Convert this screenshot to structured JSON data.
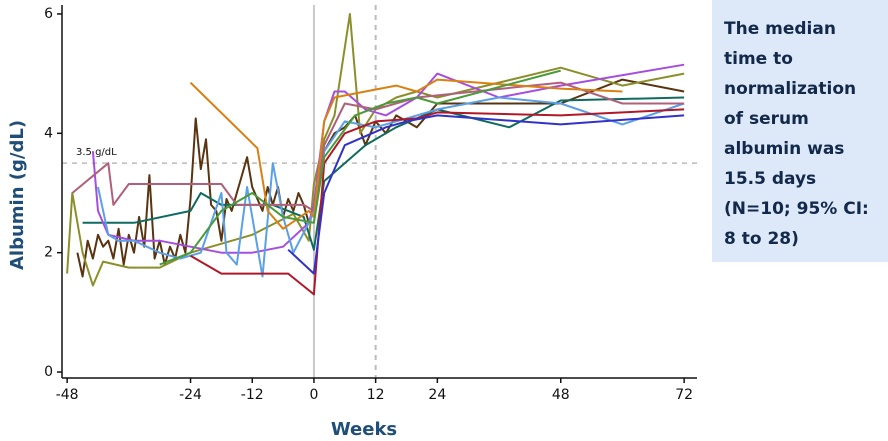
{
  "chart_data": {
    "type": "line",
    "xlabel": "Weeks",
    "ylabel": "Albumin (g/dL)",
    "xlim": [
      -49,
      74.5
    ],
    "ylim": [
      -0.1,
      6.15
    ],
    "xticks": [
      -48,
      -24,
      -12,
      0,
      12,
      24,
      48,
      72
    ],
    "yticks": [
      0,
      2,
      4,
      6
    ],
    "reference_lines": {
      "horizontal": [
        {
          "value": 3.5,
          "label": "3.5 g/dL",
          "style": "dashed"
        }
      ],
      "vertical": [
        {
          "value": 0,
          "style": "solid"
        },
        {
          "value": 12,
          "style": "dashed"
        }
      ]
    },
    "callout": [
      "The median",
      "time to",
      "normalization",
      "of serum",
      "albumin was",
      "15.5 days",
      "(N=10; 95% CI:",
      "8 to 28)"
    ],
    "series": [
      {
        "color": "#5a3410",
        "x": [
          -46,
          -45,
          -44,
          -43,
          -42,
          -41,
          -40,
          -39,
          -38,
          -37,
          -36,
          -35,
          -34,
          -33,
          -32,
          -31,
          -30,
          -29,
          -28,
          -27,
          -26,
          -25,
          -24,
          -23,
          -22,
          -21,
          -20,
          -19,
          -18,
          -17,
          -16,
          -15,
          -14,
          -13,
          -12,
          -11,
          -10,
          -9,
          -8,
          -7,
          -6,
          -5,
          -4,
          -3,
          -2,
          -1,
          0,
          2,
          4,
          6,
          8,
          10,
          12,
          14,
          16,
          20,
          24,
          36,
          48,
          60,
          72
        ],
        "values": [
          2.0,
          1.6,
          2.2,
          1.9,
          2.3,
          2.1,
          2.2,
          1.9,
          2.4,
          1.8,
          2.3,
          2.0,
          2.6,
          2.1,
          3.3,
          1.9,
          2.2,
          1.8,
          2.1,
          1.9,
          2.3,
          2.0,
          2.9,
          4.25,
          3.4,
          3.9,
          2.8,
          2.7,
          2.2,
          2.9,
          2.7,
          3.0,
          3.3,
          3.6,
          3.1,
          2.9,
          2.7,
          3.1,
          2.8,
          3.1,
          2.6,
          2.9,
          2.7,
          3.0,
          2.8,
          2.5,
          2.7,
          3.7,
          4.0,
          4.1,
          4.3,
          3.8,
          4.2,
          4.0,
          4.3,
          4.1,
          4.5,
          4.5,
          4.5,
          4.9,
          4.7
        ]
      },
      {
        "color": "#8a8f2a",
        "x": [
          -48,
          -47,
          -45,
          -43,
          -41,
          -36,
          -30,
          -24,
          -12,
          -4,
          -1,
          0,
          2,
          4,
          7,
          9,
          12,
          16,
          20,
          24,
          48,
          60,
          72
        ],
        "values": [
          1.65,
          3.0,
          2.0,
          1.45,
          1.85,
          1.75,
          1.75,
          2.0,
          2.3,
          2.65,
          2.2,
          3.15,
          3.9,
          4.3,
          6.0,
          4.0,
          4.4,
          4.6,
          4.7,
          4.6,
          5.1,
          4.8,
          5.0
        ]
      },
      {
        "color": "#0f6b5f",
        "x": [
          -45,
          -35,
          -24,
          -22,
          -18,
          -8,
          -2,
          0,
          2,
          10,
          16,
          24,
          38,
          48,
          72
        ],
        "values": [
          2.5,
          2.5,
          2.7,
          3.0,
          2.8,
          2.8,
          2.6,
          2.05,
          3.2,
          3.8,
          4.1,
          4.4,
          4.1,
          4.55,
          4.6
        ]
      },
      {
        "color": "#a64de0",
        "x": [
          -43,
          -42,
          -40,
          -35,
          -30,
          -24,
          -18,
          -12,
          -6,
          -1,
          0,
          2,
          4,
          6,
          10,
          14,
          20,
          24,
          36,
          48,
          72
        ],
        "values": [
          3.7,
          2.7,
          2.3,
          2.2,
          2.2,
          2.1,
          2.0,
          2.0,
          2.1,
          2.5,
          2.8,
          4.2,
          4.7,
          4.7,
          4.4,
          4.3,
          4.6,
          5.0,
          4.6,
          4.8,
          5.15
        ]
      },
      {
        "color": "#5aa0e6",
        "x": [
          -42,
          -40,
          -38,
          -35,
          -30,
          -26,
          -22,
          -18,
          -17,
          -15,
          -13,
          -10,
          -8,
          -6,
          -4,
          -1,
          0,
          2,
          6,
          12,
          16,
          20,
          24,
          36,
          48,
          60,
          72
        ],
        "values": [
          3.1,
          2.3,
          2.2,
          2.2,
          2.0,
          1.9,
          2.0,
          3.0,
          2.0,
          1.8,
          3.1,
          1.6,
          3.5,
          2.6,
          2.0,
          2.5,
          2.7,
          3.7,
          4.2,
          4.1,
          4.2,
          4.3,
          4.4,
          4.6,
          4.5,
          4.15,
          4.5
        ]
      },
      {
        "color": "#b0607a",
        "x": [
          -47,
          -40,
          -39,
          -36,
          -18,
          -15,
          -2,
          0,
          2,
          6,
          12,
          20,
          48,
          60,
          72
        ],
        "values": [
          3.0,
          3.5,
          2.8,
          3.15,
          3.15,
          2.8,
          2.8,
          2.7,
          3.8,
          4.5,
          4.4,
          4.6,
          4.85,
          4.5,
          4.5
        ]
      },
      {
        "color": "#d98012",
        "x": [
          -24,
          -11,
          -9,
          -6,
          -1,
          0,
          2,
          4,
          10,
          16,
          20,
          24,
          48,
          60
        ],
        "values": [
          4.85,
          3.75,
          2.7,
          2.4,
          2.7,
          2.6,
          4.2,
          4.6,
          4.7,
          4.8,
          4.7,
          4.9,
          4.75,
          4.7
        ]
      },
      {
        "color": "#b0182a",
        "x": [
          -24,
          -18,
          -10,
          -5,
          0,
          2,
          6,
          12,
          20,
          24,
          48,
          72
        ],
        "values": [
          1.95,
          1.65,
          1.65,
          1.65,
          1.3,
          3.5,
          4.0,
          4.2,
          4.25,
          4.35,
          4.3,
          4.4
        ]
      },
      {
        "color": "#3232c8",
        "x": [
          -5,
          0,
          2,
          6,
          14,
          18,
          24,
          48,
          72
        ],
        "values": [
          2.05,
          1.65,
          3.0,
          3.8,
          4.1,
          4.2,
          4.3,
          4.15,
          4.3
        ]
      },
      {
        "color": "#4a9a3a",
        "x": [
          -30,
          -24,
          -18,
          -12,
          -6,
          0,
          2,
          8,
          14,
          20,
          24,
          48
        ],
        "values": [
          1.8,
          2.0,
          2.7,
          3.0,
          2.6,
          2.5,
          3.6,
          4.3,
          4.5,
          4.6,
          4.5,
          5.05
        ]
      }
    ]
  }
}
